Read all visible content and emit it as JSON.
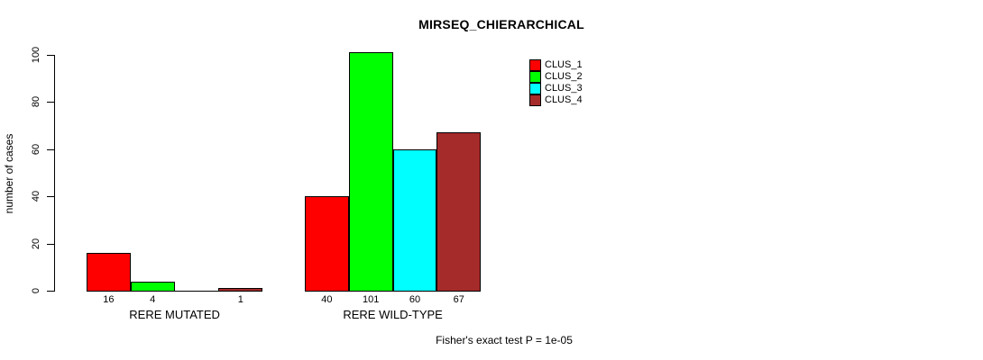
{
  "title": "MIRSEQ_CHIERARCHICAL",
  "footnote": "Fisher's exact test P = 1e-05",
  "y_axis": {
    "label": "number of cases",
    "ticks": [
      0,
      20,
      40,
      60,
      80,
      100
    ]
  },
  "legend": {
    "entries": [
      {
        "label": "CLUS_1",
        "color": "#ff0000"
      },
      {
        "label": "CLUS_2",
        "color": "#00ff00"
      },
      {
        "label": "CLUS_3",
        "color": "#00ffff"
      },
      {
        "label": "CLUS_4",
        "color": "#a52a2a"
      }
    ]
  },
  "chart_data": {
    "type": "bar",
    "title": "MIRSEQ_CHIERARCHICAL",
    "categories": [
      "RERE MUTATED",
      "RERE WILD-TYPE"
    ],
    "series": [
      {
        "name": "CLUS_1",
        "color": "#ff0000",
        "values": [
          16,
          40
        ]
      },
      {
        "name": "CLUS_2",
        "color": "#00ff00",
        "values": [
          4,
          101
        ]
      },
      {
        "name": "CLUS_3",
        "color": "#00ffff",
        "values": [
          0,
          60
        ]
      },
      {
        "name": "CLUS_4",
        "color": "#a52a2a",
        "values": [
          1,
          67
        ]
      }
    ],
    "xlabel": "",
    "ylabel": "number of cases",
    "ylim": [
      0,
      101
    ],
    "yticks": [
      0,
      20,
      40,
      60,
      80,
      100
    ],
    "grid": false,
    "legend_position": "inside-top-right",
    "bar_value_labels_shown": true,
    "zero_value_labels_hidden": true,
    "annotation": "Fisher's exact test P = 1e-05"
  }
}
